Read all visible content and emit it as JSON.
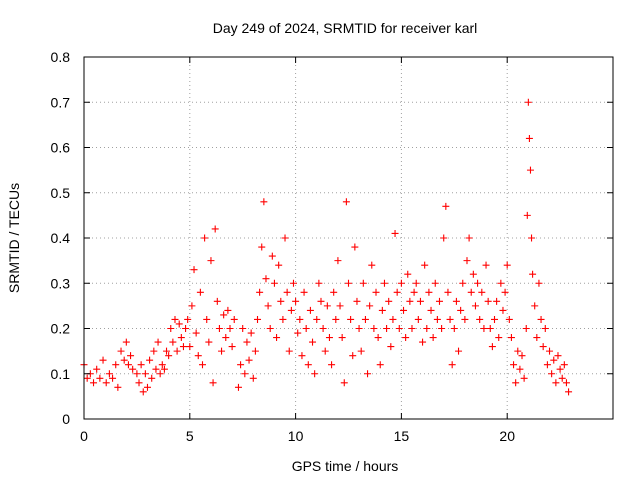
{
  "chart_data": {
    "type": "scatter",
    "title": "Day 249 of 2024, SRMTID for receiver karl",
    "xlabel": "GPS time / hours",
    "ylabel": "SRMTID / TECUs",
    "xlim": [
      0,
      25
    ],
    "ylim": [
      0,
      0.8
    ],
    "x_ticks": [
      0,
      5,
      10,
      15,
      20
    ],
    "x_tick_labels": [
      "0",
      "5",
      "10",
      "15",
      "20"
    ],
    "y_ticks": [
      0,
      0.1,
      0.2,
      0.3,
      0.4,
      0.5,
      0.6,
      0.7,
      0.8
    ],
    "y_tick_labels": [
      "0",
      "0.1",
      "0.2",
      "0.3",
      "0.4",
      "0.5",
      "0.6",
      "0.7",
      "0.8"
    ],
    "grid": true,
    "marker": "+",
    "color": "#ff0000",
    "series": [
      {
        "name": "SRMTID",
        "points": [
          [
            0.0,
            0.12
          ],
          [
            0.15,
            0.09
          ],
          [
            0.3,
            0.1
          ],
          [
            0.45,
            0.08
          ],
          [
            0.6,
            0.11
          ],
          [
            0.75,
            0.09
          ],
          [
            0.9,
            0.13
          ],
          [
            1.05,
            0.08
          ],
          [
            1.2,
            0.1
          ],
          [
            1.35,
            0.09
          ],
          [
            1.5,
            0.12
          ],
          [
            1.6,
            0.07
          ],
          [
            1.75,
            0.15
          ],
          [
            1.9,
            0.13
          ],
          [
            2.0,
            0.17
          ],
          [
            2.1,
            0.12
          ],
          [
            2.2,
            0.14
          ],
          [
            2.3,
            0.11
          ],
          [
            2.5,
            0.1
          ],
          [
            2.6,
            0.08
          ],
          [
            2.7,
            0.12
          ],
          [
            2.8,
            0.06
          ],
          [
            2.9,
            0.1
          ],
          [
            3.0,
            0.07
          ],
          [
            3.1,
            0.13
          ],
          [
            3.2,
            0.09
          ],
          [
            3.3,
            0.15
          ],
          [
            3.4,
            0.11
          ],
          [
            3.5,
            0.17
          ],
          [
            3.6,
            0.1
          ],
          [
            3.7,
            0.12
          ],
          [
            3.8,
            0.11
          ],
          [
            3.9,
            0.15
          ],
          [
            4.0,
            0.14
          ],
          [
            4.1,
            0.2
          ],
          [
            4.2,
            0.17
          ],
          [
            4.3,
            0.22
          ],
          [
            4.4,
            0.15
          ],
          [
            4.5,
            0.21
          ],
          [
            4.6,
            0.18
          ],
          [
            4.7,
            0.16
          ],
          [
            4.8,
            0.2
          ],
          [
            4.9,
            0.22
          ],
          [
            5.0,
            0.16
          ],
          [
            5.1,
            0.25
          ],
          [
            5.2,
            0.33
          ],
          [
            5.3,
            0.19
          ],
          [
            5.4,
            0.14
          ],
          [
            5.5,
            0.28
          ],
          [
            5.6,
            0.12
          ],
          [
            5.7,
            0.4
          ],
          [
            5.8,
            0.22
          ],
          [
            5.9,
            0.17
          ],
          [
            6.0,
            0.35
          ],
          [
            6.1,
            0.08
          ],
          [
            6.2,
            0.42
          ],
          [
            6.3,
            0.26
          ],
          [
            6.4,
            0.2
          ],
          [
            6.5,
            0.15
          ],
          [
            6.6,
            0.23
          ],
          [
            6.7,
            0.18
          ],
          [
            6.8,
            0.24
          ],
          [
            6.9,
            0.2
          ],
          [
            7.0,
            0.16
          ],
          [
            7.1,
            0.22
          ],
          [
            7.3,
            0.07
          ],
          [
            7.4,
            0.12
          ],
          [
            7.5,
            0.2
          ],
          [
            7.6,
            0.1
          ],
          [
            7.7,
            0.17
          ],
          [
            7.8,
            0.13
          ],
          [
            7.9,
            0.19
          ],
          [
            8.0,
            0.09
          ],
          [
            8.1,
            0.15
          ],
          [
            8.2,
            0.22
          ],
          [
            8.3,
            0.28
          ],
          [
            8.4,
            0.38
          ],
          [
            8.5,
            0.48
          ],
          [
            8.6,
            0.31
          ],
          [
            8.7,
            0.25
          ],
          [
            8.8,
            0.2
          ],
          [
            8.9,
            0.36
          ],
          [
            9.0,
            0.3
          ],
          [
            9.1,
            0.18
          ],
          [
            9.2,
            0.34
          ],
          [
            9.3,
            0.26
          ],
          [
            9.4,
            0.22
          ],
          [
            9.5,
            0.4
          ],
          [
            9.6,
            0.28
          ],
          [
            9.7,
            0.15
          ],
          [
            9.8,
            0.24
          ],
          [
            9.9,
            0.3
          ],
          [
            10.0,
            0.26
          ],
          [
            10.1,
            0.19
          ],
          [
            10.2,
            0.22
          ],
          [
            10.3,
            0.14
          ],
          [
            10.4,
            0.28
          ],
          [
            10.5,
            0.2
          ],
          [
            10.6,
            0.12
          ],
          [
            10.7,
            0.24
          ],
          [
            10.8,
            0.17
          ],
          [
            10.9,
            0.1
          ],
          [
            11.0,
            0.22
          ],
          [
            11.1,
            0.3
          ],
          [
            11.2,
            0.26
          ],
          [
            11.3,
            0.2
          ],
          [
            11.4,
            0.15
          ],
          [
            11.5,
            0.25
          ],
          [
            11.6,
            0.18
          ],
          [
            11.7,
            0.12
          ],
          [
            11.8,
            0.28
          ],
          [
            11.9,
            0.22
          ],
          [
            12.0,
            0.35
          ],
          [
            12.1,
            0.25
          ],
          [
            12.2,
            0.18
          ],
          [
            12.3,
            0.08
          ],
          [
            12.4,
            0.48
          ],
          [
            12.5,
            0.3
          ],
          [
            12.6,
            0.22
          ],
          [
            12.7,
            0.14
          ],
          [
            12.8,
            0.38
          ],
          [
            12.9,
            0.26
          ],
          [
            13.0,
            0.2
          ],
          [
            13.1,
            0.15
          ],
          [
            13.2,
            0.3
          ],
          [
            13.3,
            0.22
          ],
          [
            13.4,
            0.1
          ],
          [
            13.5,
            0.25
          ],
          [
            13.6,
            0.34
          ],
          [
            13.7,
            0.2
          ],
          [
            13.8,
            0.28
          ],
          [
            13.9,
            0.18
          ],
          [
            14.0,
            0.12
          ],
          [
            14.1,
            0.24
          ],
          [
            14.2,
            0.3
          ],
          [
            14.3,
            0.2
          ],
          [
            14.4,
            0.26
          ],
          [
            14.5,
            0.16
          ],
          [
            14.6,
            0.22
          ],
          [
            14.7,
            0.41
          ],
          [
            14.8,
            0.28
          ],
          [
            14.9,
            0.2
          ],
          [
            15.0,
            0.3
          ],
          [
            15.1,
            0.24
          ],
          [
            15.2,
            0.18
          ],
          [
            15.3,
            0.32
          ],
          [
            15.4,
            0.26
          ],
          [
            15.5,
            0.2
          ],
          [
            15.6,
            0.28
          ],
          [
            15.7,
            0.3
          ],
          [
            15.8,
            0.22
          ],
          [
            15.9,
            0.26
          ],
          [
            16.0,
            0.17
          ],
          [
            16.1,
            0.34
          ],
          [
            16.2,
            0.2
          ],
          [
            16.3,
            0.28
          ],
          [
            16.4,
            0.24
          ],
          [
            16.5,
            0.18
          ],
          [
            16.6,
            0.3
          ],
          [
            16.7,
            0.22
          ],
          [
            16.8,
            0.26
          ],
          [
            16.9,
            0.2
          ],
          [
            17.0,
            0.4
          ],
          [
            17.1,
            0.47
          ],
          [
            17.2,
            0.28
          ],
          [
            17.3,
            0.22
          ],
          [
            17.4,
            0.12
          ],
          [
            17.5,
            0.2
          ],
          [
            17.6,
            0.26
          ],
          [
            17.7,
            0.15
          ],
          [
            17.8,
            0.24
          ],
          [
            17.9,
            0.3
          ],
          [
            18.0,
            0.22
          ],
          [
            18.1,
            0.35
          ],
          [
            18.2,
            0.4
          ],
          [
            18.3,
            0.28
          ],
          [
            18.4,
            0.32
          ],
          [
            18.5,
            0.25
          ],
          [
            18.6,
            0.3
          ],
          [
            18.7,
            0.22
          ],
          [
            18.8,
            0.28
          ],
          [
            18.9,
            0.2
          ],
          [
            19.0,
            0.34
          ],
          [
            19.1,
            0.26
          ],
          [
            19.2,
            0.2
          ],
          [
            19.3,
            0.16
          ],
          [
            19.4,
            0.22
          ],
          [
            19.5,
            0.26
          ],
          [
            19.6,
            0.18
          ],
          [
            19.7,
            0.3
          ],
          [
            19.8,
            0.24
          ],
          [
            19.9,
            0.28
          ],
          [
            20.0,
            0.34
          ],
          [
            20.1,
            0.22
          ],
          [
            20.2,
            0.18
          ],
          [
            20.3,
            0.12
          ],
          [
            20.4,
            0.08
          ],
          [
            20.5,
            0.15
          ],
          [
            20.6,
            0.11
          ],
          [
            20.7,
            0.14
          ],
          [
            20.8,
            0.09
          ],
          [
            20.9,
            0.2
          ],
          [
            20.95,
            0.45
          ],
          [
            21.0,
            0.7
          ],
          [
            21.05,
            0.62
          ],
          [
            21.1,
            0.55
          ],
          [
            21.15,
            0.4
          ],
          [
            21.2,
            0.32
          ],
          [
            21.3,
            0.25
          ],
          [
            21.4,
            0.18
          ],
          [
            21.5,
            0.3
          ],
          [
            21.6,
            0.22
          ],
          [
            21.7,
            0.16
          ],
          [
            21.8,
            0.2
          ],
          [
            21.9,
            0.12
          ],
          [
            22.0,
            0.15
          ],
          [
            22.1,
            0.1
          ],
          [
            22.2,
            0.13
          ],
          [
            22.3,
            0.08
          ],
          [
            22.4,
            0.14
          ],
          [
            22.5,
            0.11
          ],
          [
            22.6,
            0.09
          ],
          [
            22.7,
            0.12
          ],
          [
            22.8,
            0.08
          ],
          [
            22.9,
            0.06
          ]
        ]
      }
    ]
  }
}
